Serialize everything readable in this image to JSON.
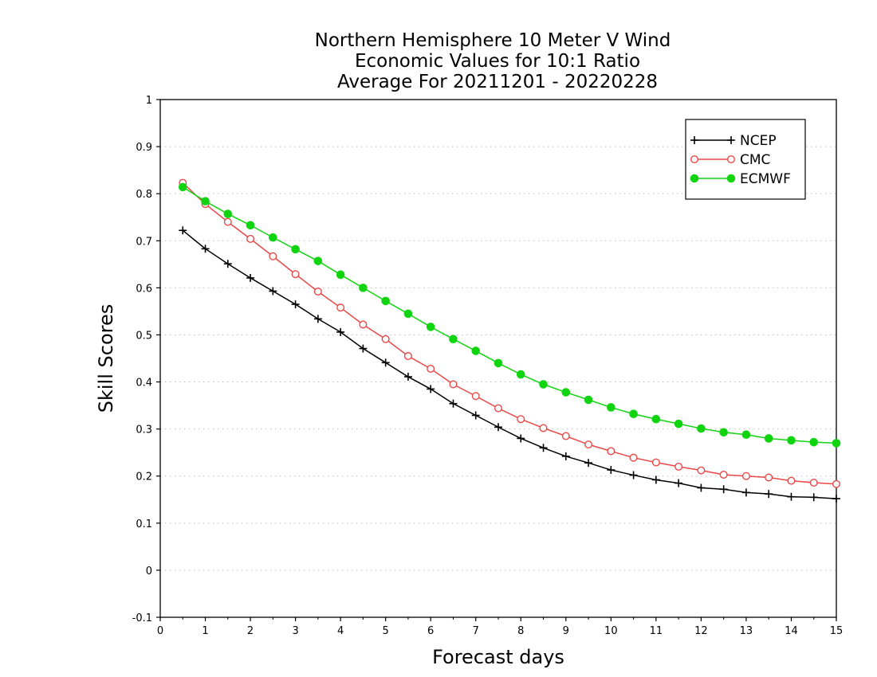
{
  "chart_data": {
    "type": "line",
    "title_lines": [
      "Northern Hemisphere 10 Meter V Wind",
      "Economic Values for 10:1 Ratio",
      "Average For 20211201 - 20220228"
    ],
    "xlabel": "Forecast days",
    "ylabel": "Skill Scores",
    "xlim": [
      0,
      15
    ],
    "ylim": [
      -0.1,
      1
    ],
    "xticks": [
      0,
      1,
      2,
      3,
      4,
      5,
      6,
      7,
      8,
      9,
      10,
      11,
      12,
      13,
      14,
      15
    ],
    "yticks": [
      -0.1,
      0,
      0.1,
      0.2,
      0.3,
      0.4,
      0.5,
      0.6,
      0.7,
      0.8,
      0.9,
      1
    ],
    "ytick_labels": [
      "-0.1",
      "0",
      "0.1",
      "0.2",
      "0.3",
      "0.4",
      "0.5",
      "0.6",
      "0.7",
      "0.8",
      "0.9",
      "1"
    ],
    "grid": "horizontal-dotted",
    "legend_position": "top-right",
    "x": [
      0.5,
      1,
      1.5,
      2,
      2.5,
      3,
      3.5,
      4,
      4.5,
      5,
      5.5,
      6,
      6.5,
      7,
      7.5,
      8,
      8.5,
      9,
      9.5,
      10,
      10.5,
      11,
      11.5,
      12,
      12.5,
      13,
      13.5,
      14,
      14.5,
      15
    ],
    "series": [
      {
        "name": "NCEP",
        "color": "#000000",
        "marker": "plus",
        "values": [
          0.722,
          0.683,
          0.651,
          0.621,
          0.593,
          0.565,
          0.534,
          0.506,
          0.471,
          0.441,
          0.411,
          0.385,
          0.354,
          0.329,
          0.304,
          0.28,
          0.26,
          0.242,
          0.228,
          0.213,
          0.202,
          0.192,
          0.185,
          0.175,
          0.172,
          0.165,
          0.162,
          0.156,
          0.155,
          0.152
        ]
      },
      {
        "name": "CMC",
        "color": "#e84848",
        "marker": "open-circle",
        "values": [
          0.823,
          0.778,
          0.74,
          0.704,
          0.667,
          0.629,
          0.592,
          0.558,
          0.522,
          0.491,
          0.455,
          0.428,
          0.395,
          0.37,
          0.344,
          0.321,
          0.302,
          0.285,
          0.267,
          0.253,
          0.239,
          0.229,
          0.22,
          0.212,
          0.203,
          0.2,
          0.197,
          0.19,
          0.186,
          0.183
        ]
      },
      {
        "name": "ECMWF",
        "color": "#11d411",
        "marker": "filled-circle",
        "values": [
          0.814,
          0.784,
          0.757,
          0.733,
          0.707,
          0.682,
          0.657,
          0.628,
          0.6,
          0.572,
          0.545,
          0.517,
          0.491,
          0.466,
          0.44,
          0.416,
          0.395,
          0.378,
          0.362,
          0.346,
          0.332,
          0.321,
          0.311,
          0.301,
          0.293,
          0.288,
          0.28,
          0.276,
          0.272,
          0.27
        ]
      }
    ]
  }
}
